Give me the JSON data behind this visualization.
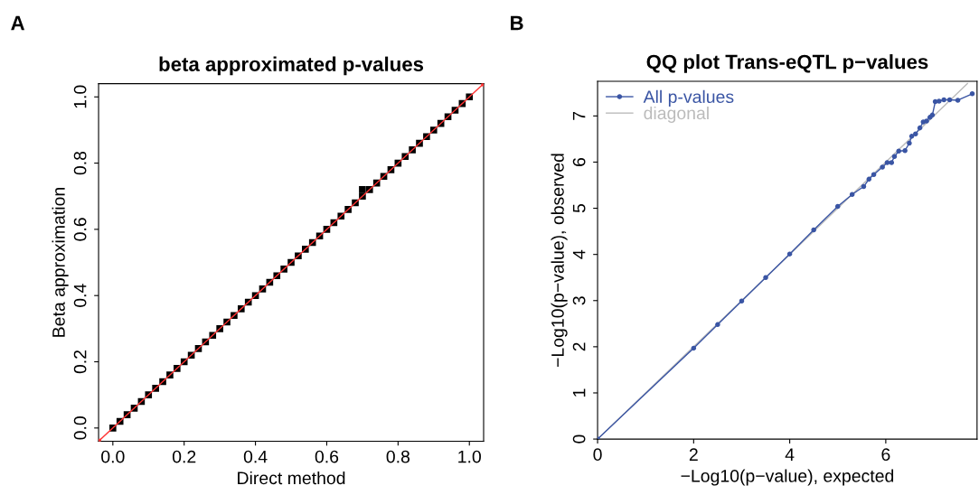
{
  "chart_data": [
    {
      "type": "scatter",
      "title": "beta approximated p-values",
      "xlabel": "Direct method",
      "ylabel": "Beta approximation",
      "annotations": [
        "A"
      ],
      "xlim": [
        -0.04,
        1.04
      ],
      "ylim": [
        -0.04,
        1.04
      ],
      "xticks": [
        {
          "value": 0,
          "label": "0.0"
        },
        0.2,
        0.4,
        0.6,
        0.8,
        {
          "value": 1,
          "label": "1.0"
        }
      ],
      "yticks": [
        {
          "value": 0,
          "label": "0.0"
        },
        0.2,
        0.4,
        0.6,
        0.8,
        {
          "value": 1,
          "label": "1.0"
        }
      ],
      "grid": false,
      "legend": false,
      "marker": "square",
      "series": [
        {
          "color": "#000000",
          "x": [
            0.0,
            0.02,
            0.04,
            0.06,
            0.08,
            0.1,
            0.12,
            0.14,
            0.16,
            0.18,
            0.2,
            0.22,
            0.24,
            0.26,
            0.28,
            0.3,
            0.32,
            0.34,
            0.36,
            0.38,
            0.4,
            0.42,
            0.44,
            0.46,
            0.48,
            0.5,
            0.52,
            0.54,
            0.56,
            0.58,
            0.6,
            0.62,
            0.64,
            0.66,
            0.68,
            0.7,
            0.7,
            0.72,
            0.74,
            0.76,
            0.78,
            0.8,
            0.82,
            0.84,
            0.86,
            0.88,
            0.9,
            0.92,
            0.94,
            0.96,
            0.98,
            1.0
          ],
          "values": [
            0.0,
            0.02,
            0.04,
            0.06,
            0.08,
            0.1,
            0.12,
            0.14,
            0.16,
            0.18,
            0.2,
            0.22,
            0.24,
            0.26,
            0.28,
            0.3,
            0.32,
            0.34,
            0.36,
            0.38,
            0.4,
            0.42,
            0.44,
            0.46,
            0.48,
            0.5,
            0.52,
            0.54,
            0.56,
            0.58,
            0.6,
            0.62,
            0.64,
            0.66,
            0.68,
            0.7,
            0.72,
            0.72,
            0.74,
            0.76,
            0.78,
            0.8,
            0.82,
            0.84,
            0.86,
            0.88,
            0.9,
            0.92,
            0.94,
            0.96,
            0.98,
            1.0
          ]
        },
        {
          "type": "line",
          "color": "#ff3333",
          "x": [
            -0.04,
            1.04
          ],
          "values": [
            -0.04,
            1.04
          ]
        }
      ]
    },
    {
      "type": "line",
      "title": "QQ plot Trans-eQTL p−values",
      "xlabel": "−Log10(p−value), expected",
      "ylabel": "−Log10(p−value), observed",
      "annotations": [
        "B"
      ],
      "xlim": [
        0,
        7.9
      ],
      "ylim": [
        0,
        7.75
      ],
      "xticks": [
        0,
        2,
        4,
        6
      ],
      "yticks": [
        0,
        1,
        2,
        3,
        4,
        5,
        6,
        7
      ],
      "grid": false,
      "legend": "top left",
      "series": [
        {
          "name": "diagonal",
          "color": "#bbbbbb",
          "marker": "none",
          "x": [
            0,
            7.7
          ],
          "values": [
            0,
            7.7
          ]
        },
        {
          "name": "All p-values",
          "color": "#3a55a4",
          "marker": "circle",
          "x": [
            0,
            2.0,
            2.5,
            3.0,
            3.5,
            4.0,
            4.5,
            5.0,
            5.3,
            5.54,
            5.65,
            5.75,
            5.93,
            6.03,
            6.12,
            6.18,
            6.27,
            6.4,
            6.49,
            6.54,
            6.62,
            6.71,
            6.78,
            6.85,
            6.92,
            6.97,
            7.03,
            7.11,
            7.21,
            7.33,
            7.5,
            7.8
          ],
          "values": [
            0,
            1.97,
            2.48,
            2.99,
            3.5,
            4.01,
            4.53,
            5.04,
            5.3,
            5.47,
            5.63,
            5.73,
            5.89,
            5.99,
            5.99,
            6.12,
            6.24,
            6.25,
            6.41,
            6.56,
            6.61,
            6.74,
            6.87,
            6.89,
            6.97,
            7.02,
            7.31,
            7.32,
            7.35,
            7.35,
            7.34,
            7.48
          ]
        }
      ]
    }
  ]
}
